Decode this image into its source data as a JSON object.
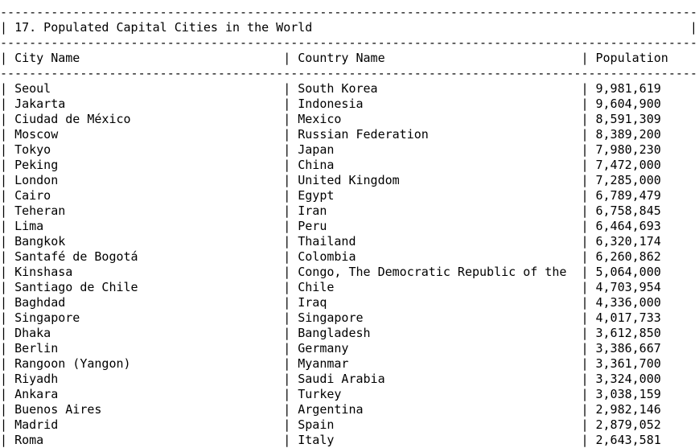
{
  "title": "17. Populated Capital Cities in the World",
  "columns": [
    "City Name",
    "Country Name",
    "Population"
  ],
  "rows": [
    [
      "Seoul",
      "South Korea",
      "9,981,619"
    ],
    [
      "Jakarta",
      "Indonesia",
      "9,604,900"
    ],
    [
      "Ciudad de México",
      "Mexico",
      "8,591,309"
    ],
    [
      "Moscow",
      "Russian Federation",
      "8,389,200"
    ],
    [
      "Tokyo",
      "Japan",
      "7,980,230"
    ],
    [
      "Peking",
      "China",
      "7,472,000"
    ],
    [
      "London",
      "United Kingdom",
      "7,285,000"
    ],
    [
      "Cairo",
      "Egypt",
      "6,789,479"
    ],
    [
      "Teheran",
      "Iran",
      "6,758,845"
    ],
    [
      "Lima",
      "Peru",
      "6,464,693"
    ],
    [
      "Bangkok",
      "Thailand",
      "6,320,174"
    ],
    [
      "Santafé de Bogotá",
      "Colombia",
      "6,260,862"
    ],
    [
      "Kinshasa",
      "Congo, The Democratic Republic of the",
      "5,064,000"
    ],
    [
      "Santiago de Chile",
      "Chile",
      "4,703,954"
    ],
    [
      "Baghdad",
      "Iraq",
      "4,336,000"
    ],
    [
      "Singapore",
      "Singapore",
      "4,017,733"
    ],
    [
      "Dhaka",
      "Bangladesh",
      "3,612,850"
    ],
    [
      "Berlin",
      "Germany",
      "3,386,667"
    ],
    [
      "Rangoon (Yangon)",
      "Myanmar",
      "3,361,700"
    ],
    [
      "Riyadh",
      "Saudi Arabia",
      "3,324,000"
    ],
    [
      "Ankara",
      "Turkey",
      "3,038,159"
    ],
    [
      "Buenos Aires",
      "Argentina",
      "2,982,146"
    ],
    [
      "Madrid",
      "Spain",
      "2,879,052"
    ],
    [
      "Roma",
      "Italy",
      "2,643,581"
    ]
  ]
}
